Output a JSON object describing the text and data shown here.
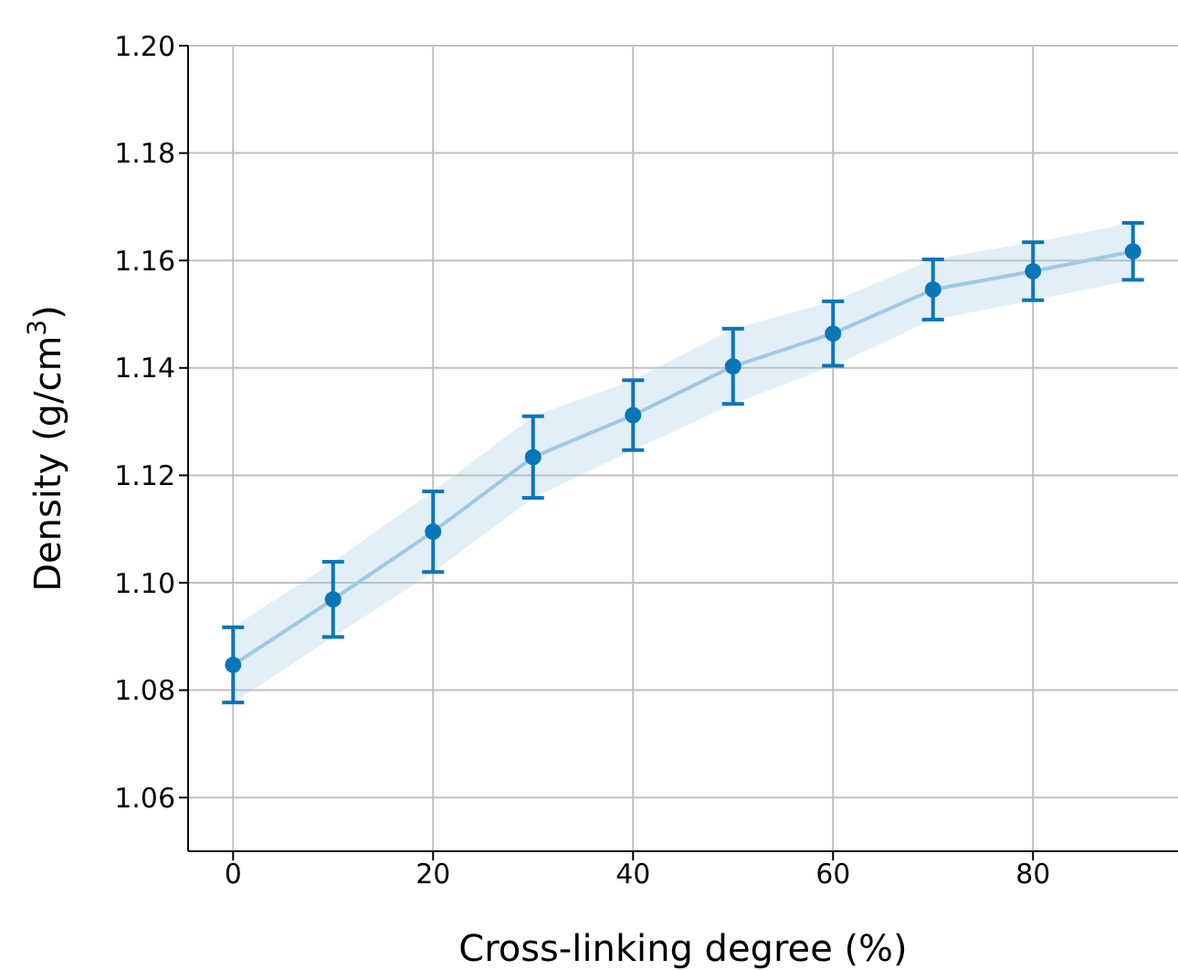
{
  "chart_data": {
    "type": "line",
    "xlabel": "Cross-linking degree (%)",
    "ylabel": "Density (g/cm$^{3}$)",
    "x": [
      0,
      10,
      20,
      30,
      40,
      50,
      60,
      70,
      80,
      90
    ],
    "series": [
      {
        "color": "#9ecae1",
        "marker": "none",
        "values": [
          1.0847,
          1.0969,
          1.1095,
          1.1234,
          1.1312,
          1.1403,
          1.1464,
          1.1546,
          1.158,
          1.1617
        ],
        "lower": [
          1.0777,
          1.0899,
          1.102,
          1.1158,
          1.1247,
          1.1333,
          1.1404,
          1.149,
          1.1526,
          1.1564
        ],
        "upper": [
          1.0917,
          1.1039,
          1.117,
          1.131,
          1.1377,
          1.1473,
          1.1524,
          1.1602,
          1.1634,
          1.167
        ]
      },
      {
        "type": "scatter",
        "color": "#0a75b8",
        "marker": "circle",
        "values": [
          1.0847,
          1.0969,
          1.1095,
          1.1234,
          1.1312,
          1.1403,
          1.1464,
          1.1546,
          1.158,
          1.1617
        ],
        "errors": [
          0.007,
          0.007,
          0.0075,
          0.0076,
          0.0065,
          0.007,
          0.006,
          0.0056,
          0.0054,
          0.0053
        ]
      }
    ],
    "xlim": [
      -4.5,
      94.5
    ],
    "xticks": [
      0,
      20,
      40,
      60,
      80
    ],
    "ylim": [
      1.05,
      1.2
    ],
    "yticks": [
      1.06,
      1.08,
      {
        "value": 1.1,
        "label": "1.10"
      },
      1.12,
      1.14,
      1.16,
      1.18,
      {
        "value": 1.2,
        "label": "1.20"
      }
    ],
    "grid": true
  }
}
